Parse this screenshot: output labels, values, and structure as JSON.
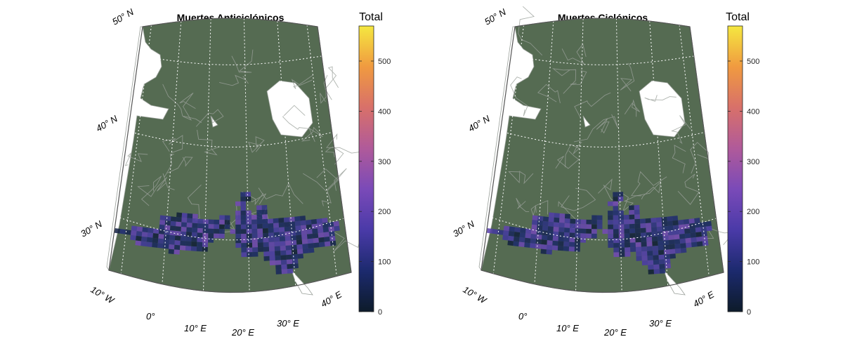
{
  "panels": [
    {
      "title": "Muertes Anticiclónicos",
      "seed": 7,
      "hot_spots": [
        [
          24,
          25,
          8
        ],
        [
          23,
          23,
          6
        ],
        [
          22,
          14,
          5
        ]
      ]
    },
    {
      "title": "Muertes Ciclónicos",
      "seed": 19,
      "hot_spots": [
        [
          24,
          23,
          6
        ],
        [
          23,
          17,
          5
        ],
        [
          33,
          28,
          5
        ]
      ]
    }
  ],
  "lat_labels": [
    "50° N",
    "40° N",
    "30° N"
  ],
  "lon_labels": [
    "10° W",
    "0°",
    "10° E",
    "20° E",
    "30° E",
    "40° E"
  ],
  "colorbar": {
    "title": "Total",
    "min": 0,
    "max": 570,
    "ticks": [
      0,
      100,
      200,
      300,
      400,
      500
    ],
    "stops": [
      "#0d1b2a",
      "#1c2a6e",
      "#4a3aa8",
      "#7a4ab8",
      "#b05a9a",
      "#d8706a",
      "#f09a40",
      "#f5e840"
    ]
  },
  "colors": {
    "land": "#556b52",
    "border": "#9aa09a",
    "frame": "#8a8a8a",
    "graticule": "#ffffff",
    "water": "#ffffff"
  },
  "mask_rows": [
    [
      33,
      1,
      23,
      25
    ],
    [
      34,
      1,
      23,
      25
    ],
    [
      35,
      1,
      22,
      24
    ],
    [
      36,
      1,
      23,
      24
    ],
    [
      36,
      1,
      26,
      28
    ],
    [
      37,
      1,
      22,
      25
    ],
    [
      37,
      1,
      26,
      28
    ],
    [
      38,
      1,
      11,
      15
    ],
    [
      38,
      1,
      19,
      21
    ],
    [
      38,
      1,
      22,
      28
    ],
    [
      39,
      1,
      8,
      21
    ],
    [
      39,
      1,
      22,
      35
    ],
    [
      40,
      1,
      8,
      21
    ],
    [
      40,
      1,
      22,
      39
    ],
    [
      41,
      1,
      8,
      20
    ],
    [
      41,
      1,
      21,
      41
    ],
    [
      42,
      1,
      3,
      20
    ],
    [
      42,
      1,
      22,
      41
    ],
    [
      43,
      1,
      0,
      18
    ],
    [
      43,
      1,
      22,
      40
    ],
    [
      44,
      1,
      3,
      17
    ],
    [
      44,
      1,
      22,
      40
    ],
    [
      45,
      1,
      4,
      17
    ],
    [
      45,
      1,
      23,
      40
    ],
    [
      46,
      1,
      10,
      12
    ],
    [
      46,
      1,
      23,
      26
    ],
    [
      46,
      1,
      27,
      36
    ],
    [
      47,
      1,
      27,
      34
    ],
    [
      48,
      1,
      28,
      33
    ],
    [
      49,
      1,
      29,
      33
    ],
    [
      50,
      1,
      29,
      32
    ]
  ]
}
